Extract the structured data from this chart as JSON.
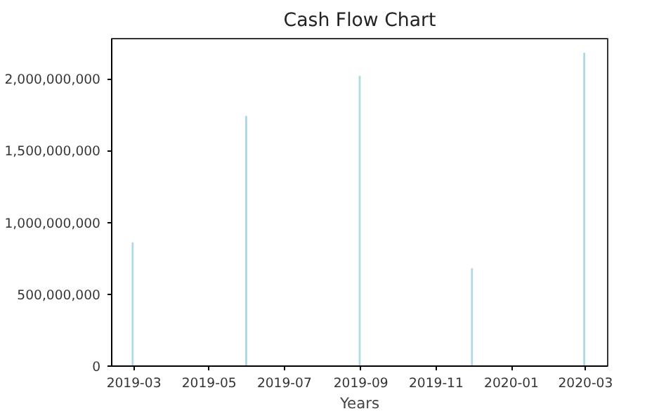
{
  "chart_data": {
    "type": "bar",
    "title": "Cash Flow Chart",
    "xlabel": "Years",
    "x": [
      "2019-02-28",
      "2019-05-31",
      "2019-08-31",
      "2019-11-30",
      "2020-02-29"
    ],
    "values": [
      860000000,
      1740000000,
      2020000000,
      680000000,
      2180000000
    ],
    "color": "#add8e6",
    "xlim": [
      "2019-02-11",
      "2020-03-19"
    ],
    "xticks": [
      {
        "value": "2019-03-01",
        "label": "2019-03"
      },
      {
        "value": "2019-05-01",
        "label": "2019-05"
      },
      {
        "value": "2019-07-01",
        "label": "2019-07"
      },
      {
        "value": "2019-09-01",
        "label": "2019-09"
      },
      {
        "value": "2019-11-01",
        "label": "2019-11"
      },
      {
        "value": "2020-01-01",
        "label": "2020-01"
      },
      {
        "value": "2020-03-01",
        "label": "2020-03"
      }
    ],
    "ylim": [
      0,
      2280000000
    ],
    "yticks": [
      0,
      {
        "value": 500000000,
        "label": "500,000,000"
      },
      {
        "value": 1000000000,
        "label": "1,000,000,000"
      },
      {
        "value": 1500000000,
        "label": "1,500,000,000"
      },
      {
        "value": 2000000000,
        "label": "2,000,000,000"
      }
    ],
    "grid": false
  }
}
